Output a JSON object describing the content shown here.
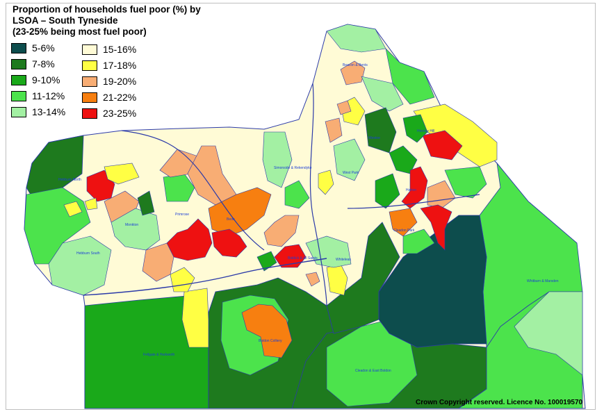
{
  "title": {
    "line1": "Proportion of households fuel poor (%) by",
    "line2": "LSOA – South Tyneside",
    "line3": "(23-25% being most fuel poor)"
  },
  "legend": [
    {
      "label": "5-6%",
      "color": "#0d4d4d"
    },
    {
      "label": "7-8%",
      "color": "#1e7a1e"
    },
    {
      "label": "9-10%",
      "color": "#1aa91a"
    },
    {
      "label": "11-12%",
      "color": "#4ce34c"
    },
    {
      "label": "13-14%",
      "color": "#a3f0a3"
    },
    {
      "label": "15-16%",
      "color": "#fffbd6"
    },
    {
      "label": "17-18%",
      "color": "#ffff44"
    },
    {
      "label": "19-20%",
      "color": "#f8ad74"
    },
    {
      "label": "21-22%",
      "color": "#f77f10"
    },
    {
      "label": "23-25%",
      "color": "#ee1111"
    }
  ],
  "place_labels": [
    "Beacon & Bents",
    "Horsley Hill",
    "Westoe",
    "Simonside & Rekendyke",
    "West Park",
    "Harton",
    "Hebburn North",
    "Hebburn South",
    "Primrose",
    "Bede",
    "Monkton",
    "Cleadon Park",
    "Biddick & All Saints",
    "Whiteleas",
    "Whitburn & Marsden",
    "Fellgate & Hedworth",
    "Boldon Colliery",
    "Cleadon & East Boldon"
  ],
  "copyright": "Crown Copyright reserved. Licence No. 100019570"
}
